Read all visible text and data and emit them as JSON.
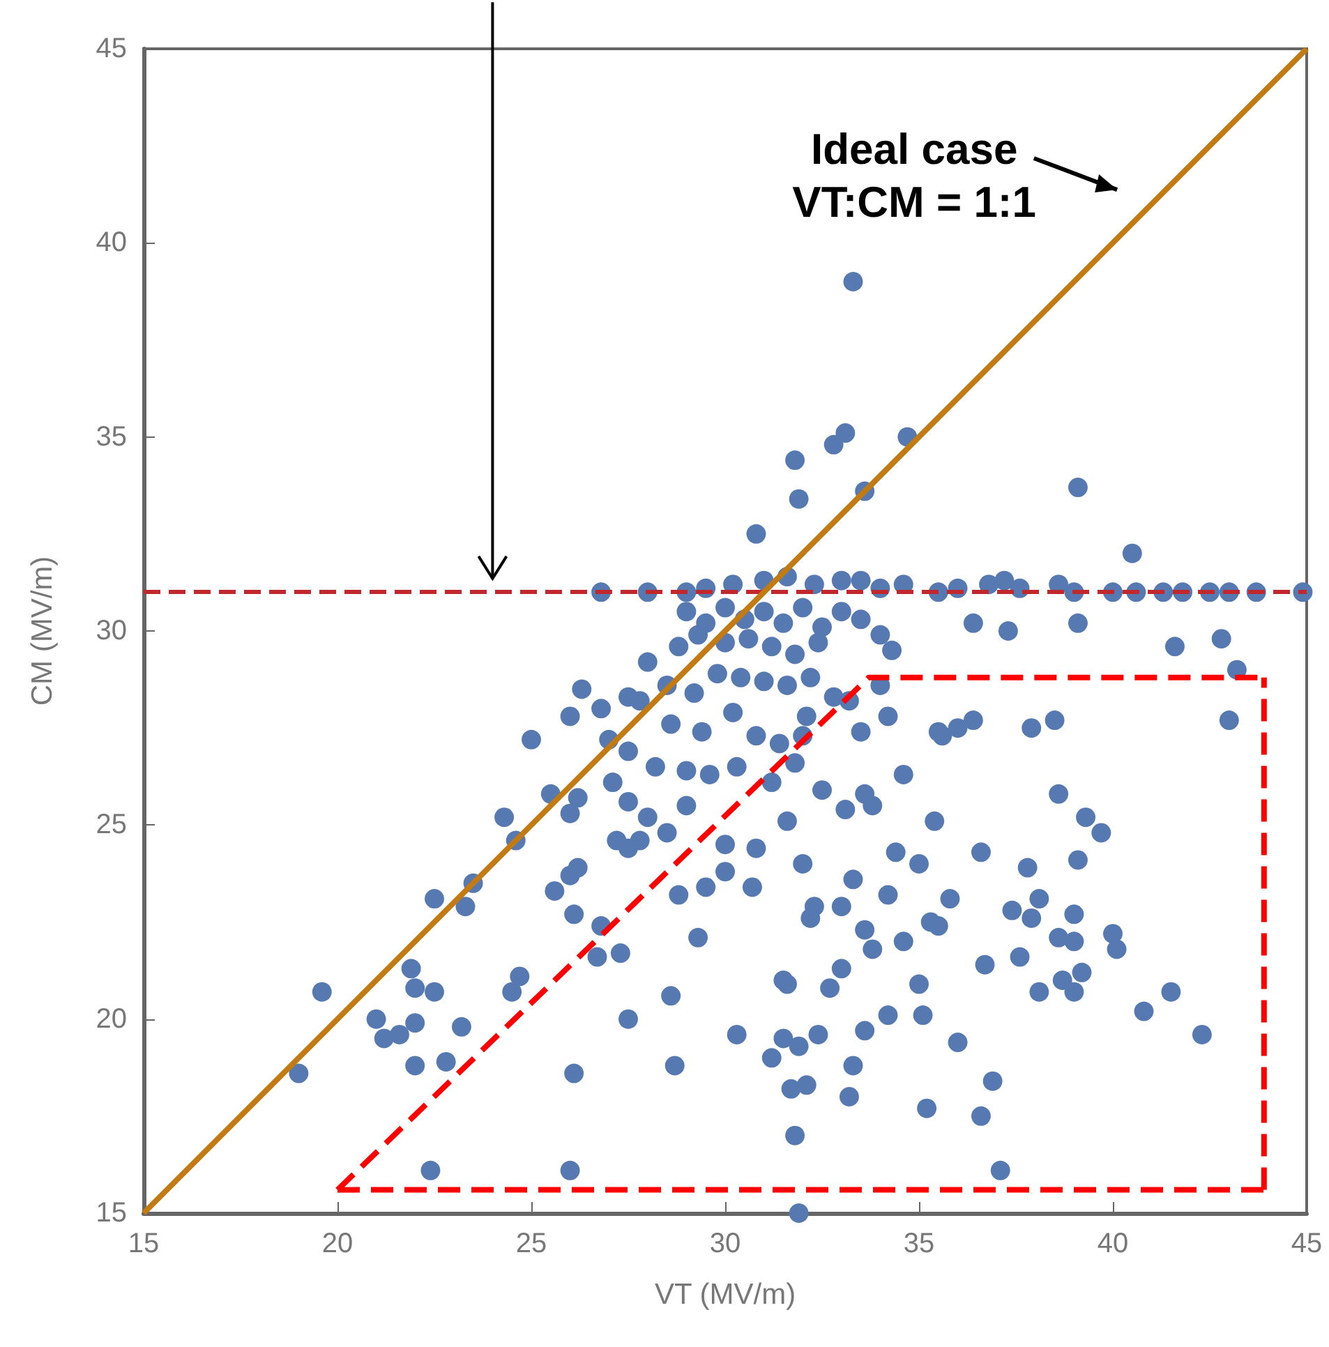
{
  "chart_data": {
    "type": "scatter",
    "xlabel": "VT (MV/m)",
    "ylabel": "CM (MV/m)",
    "annotations": [
      "Ideal case\nVT:CM = 1:1"
    ],
    "xlim": [
      15,
      45
    ],
    "ylim": [
      15,
      45
    ],
    "xticks": [
      15,
      20,
      25,
      30,
      35,
      40,
      45
    ],
    "yticks": [
      15,
      20,
      25,
      30,
      35,
      40,
      45
    ],
    "grid": false,
    "marker": "circle",
    "ref_lines": [
      {
        "axis": "y",
        "value": 31,
        "color": "#c0282d",
        "line_style": "dashed"
      }
    ],
    "series": [
      {
        "color": "#5679b1",
        "x": [
          33.3,
          33.1,
          34.7,
          32.8,
          31.8,
          33.6,
          31.9,
          39.1,
          40.5,
          30.8,
          26.8,
          28,
          29,
          29.5,
          30.2,
          31,
          31.6,
          32.3,
          33,
          33.5,
          34,
          34.6,
          35.5,
          36,
          36.8,
          37.2,
          37.6,
          38.6,
          39,
          40,
          40.6,
          41.3,
          41.8,
          42.5,
          43,
          43.7,
          44.9,
          29,
          29.5,
          30,
          30.5,
          31,
          31.5,
          32,
          32.5,
          33,
          33.5,
          34,
          34.3,
          28.8,
          29.3,
          30,
          30.6,
          31.2,
          31.8,
          32.4,
          28,
          28.5,
          29.2,
          29.8,
          30.4,
          31,
          31.6,
          32.2,
          32.8,
          33.2,
          34,
          27.8,
          27.5,
          28.6,
          29.4,
          30.2,
          30.8,
          31.4,
          32.1,
          33.5,
          34.2,
          35.5,
          36.4,
          37.9,
          38.5,
          36.4,
          37.3,
          39.1,
          41.6,
          42.8,
          43.2,
          43,
          35.6,
          26,
          26.3,
          25,
          26.8,
          27,
          27.5,
          28.2,
          29,
          29.6,
          30.3,
          31.2,
          32,
          27.1,
          26.2,
          26,
          25.5,
          27.5,
          28,
          29,
          30,
          30.8,
          31.8,
          24.6,
          24.3,
          23.5,
          23.3,
          22.5,
          26,
          26.2,
          25.6,
          27.5,
          27.2,
          27.8,
          28.5,
          28.8,
          29.5,
          30,
          26.1,
          26.8,
          27.3,
          26.7,
          19,
          19.6,
          21,
          21.2,
          21.6,
          22,
          22,
          21.9,
          22.5,
          22,
          22.4,
          23.2,
          22.8,
          24.5,
          24.7,
          26,
          26.1,
          27.5,
          28.6,
          28.7,
          29.3,
          30.3,
          30.7,
          31.6,
          32,
          32.3,
          32.2,
          33.3,
          33,
          33.6,
          34.4,
          35,
          34.2,
          36.6,
          35.4,
          33.6,
          33.8,
          33.1,
          36,
          38.6,
          39.3,
          39.7,
          39.1,
          38.1,
          37.4,
          37.8,
          31.5,
          31.6,
          32.7,
          33,
          33.8,
          34.6,
          35.5,
          35.8,
          36.7,
          32.4,
          31.9,
          31.5,
          31.2,
          31.7,
          33.3,
          33.2,
          33.6,
          34.2,
          35,
          35.1,
          35.2,
          36,
          36.6,
          36.9,
          37.1,
          31.8,
          32.1,
          31.9,
          37.6,
          37.9,
          38.1,
          38.7,
          39,
          39,
          39.2,
          38.6,
          39,
          40,
          40.1,
          40.8,
          41.5,
          42.3,
          34.6,
          35.3,
          32.5
        ],
        "values": [
          39,
          35.1,
          35,
          34.8,
          34.4,
          33.6,
          33.4,
          33.7,
          32,
          32.5,
          31,
          31,
          31,
          31.1,
          31.2,
          31.3,
          31.4,
          31.2,
          31.3,
          31.3,
          31.1,
          31.2,
          31,
          31.1,
          31.2,
          31.3,
          31.1,
          31.2,
          31,
          31,
          31,
          31,
          31,
          31,
          31,
          31,
          31,
          30.5,
          30.2,
          30.6,
          30.3,
          30.5,
          30.2,
          30.6,
          30.1,
          30.5,
          30.3,
          29.9,
          29.5,
          29.6,
          29.9,
          29.7,
          29.8,
          29.6,
          29.4,
          29.7,
          29.2,
          28.6,
          28.4,
          28.9,
          28.8,
          28.7,
          28.6,
          28.8,
          28.3,
          28.2,
          28.6,
          28.2,
          28.3,
          27.6,
          27.4,
          27.9,
          27.3,
          27.1,
          27.8,
          27.4,
          27.8,
          27.4,
          27.7,
          27.5,
          27.7,
          30.2,
          30,
          30.2,
          29.6,
          29.8,
          29,
          27.7,
          27.3,
          27.8,
          28.5,
          27.2,
          28,
          27.2,
          26.9,
          26.5,
          26.4,
          26.3,
          26.5,
          26.1,
          27.3,
          26.1,
          25.7,
          25.3,
          25.8,
          25.6,
          25.2,
          25.5,
          24.5,
          24.4,
          26.6,
          24.6,
          25.2,
          23.5,
          22.9,
          23.1,
          23.7,
          23.9,
          23.3,
          24.4,
          24.6,
          24.6,
          24.8,
          23.2,
          23.4,
          23.8,
          22.7,
          22.4,
          21.7,
          21.6,
          18.6,
          20.7,
          20,
          19.5,
          19.6,
          20.8,
          19.9,
          21.3,
          20.7,
          18.8,
          16.1,
          19.8,
          18.9,
          20.7,
          21.1,
          16.1,
          18.6,
          20,
          20.6,
          18.8,
          22.1,
          19.6,
          23.4,
          25.1,
          24,
          22.9,
          22.6,
          23.6,
          22.9,
          22.3,
          24.3,
          24,
          23.2,
          24.3,
          25.1,
          25.8,
          25.5,
          25.4,
          27.5,
          25.8,
          25.2,
          24.8,
          24.1,
          23.1,
          22.8,
          23.9,
          21,
          20.9,
          20.8,
          21.3,
          21.8,
          22,
          22.4,
          23.1,
          21.4,
          19.6,
          19.3,
          19.5,
          19,
          18.2,
          18.8,
          18,
          19.7,
          20.1,
          20.9,
          20.1,
          17.7,
          19.4,
          17.5,
          18.4,
          16.1,
          17,
          18.3,
          15,
          21.6,
          22.6,
          20.7,
          21,
          20.7,
          22,
          21.2,
          22.1,
          22.7,
          22.2,
          21.8,
          20.2,
          20.7,
          19.6,
          26.3,
          22.5,
          25.9
        ]
      },
      {
        "type": "line",
        "color": "#c27a12",
        "marker": "none",
        "line_style": "solid",
        "x": [
          15,
          45
        ],
        "values": [
          15,
          45
        ]
      },
      {
        "type": "line",
        "color": "#ff0000",
        "marker": "none",
        "line_style": "dashed",
        "x": [
          20,
          33.7,
          43.9
        ],
        "values": [
          15.6,
          28.8,
          28.8
        ]
      },
      {
        "type": "line",
        "color": "#ff0000",
        "marker": "none",
        "line_style": "dashed",
        "x": [
          20,
          43.9
        ],
        "values": [
          15.6,
          15.6
        ]
      },
      {
        "type": "line",
        "color": "#ff0000",
        "marker": "none",
        "line_style": "dashed",
        "x": [
          43.9,
          43.9
        ],
        "values": [
          15.6,
          28.8
        ]
      }
    ]
  }
}
